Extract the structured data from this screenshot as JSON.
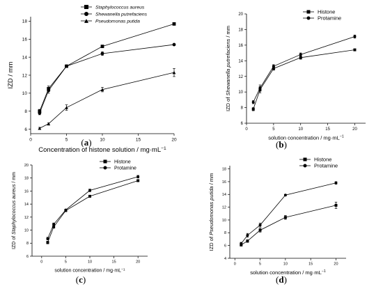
{
  "chart_data": [
    {
      "panel": "(a)",
      "type": "line",
      "xlabel": "Concentration of histone solution / mg·mL",
      "xlabel_sup": "−1",
      "ylabel": "IZD / mm",
      "xlim": [
        0,
        20
      ],
      "ylim": [
        5.5,
        18.5
      ],
      "xticks": [
        0,
        5,
        10,
        15,
        20
      ],
      "yticks": [
        6,
        8,
        10,
        12,
        14,
        16,
        18
      ],
      "x": [
        1.25,
        2.5,
        5,
        10,
        20
      ],
      "series": [
        {
          "name": "Staphylococcus aureus",
          "marker": "square",
          "values": [
            8.0,
            10.5,
            13.0,
            15.2,
            17.7
          ],
          "errors": [
            0.2,
            0.3,
            0.1,
            0.1,
            0.15
          ]
        },
        {
          "name": "Shewanella putrefaciens",
          "marker": "circle",
          "values": [
            7.8,
            10.3,
            13.0,
            14.4,
            15.4
          ],
          "errors": [
            0.2,
            0.3,
            0.1,
            0.2,
            0.1
          ]
        },
        {
          "name": "Pseudomonas putida",
          "marker": "triangle",
          "values": [
            6.1,
            6.6,
            8.4,
            10.4,
            12.3
          ],
          "errors": [
            0.1,
            0.1,
            0.3,
            0.25,
            0.45
          ]
        }
      ],
      "legend": "top-right"
    },
    {
      "panel": "(b)",
      "type": "line",
      "xlabel": "solution concentration / mg·mL",
      "xlabel_sup": "−1",
      "ylabel": "IZD of Shewanella putrefaciens / mm",
      "ylabel_plain": "IZD of ",
      "ylabel_italic": "Shewanella putrefaciens",
      "ylabel_tail": " / mm",
      "xlim": [
        0,
        22
      ],
      "ylim": [
        6,
        20
      ],
      "xticks": [
        0,
        5,
        10,
        15,
        20
      ],
      "yticks": [
        6,
        8,
        10,
        12,
        14,
        16,
        18,
        20
      ],
      "x": [
        1.25,
        2.5,
        5,
        10,
        20
      ],
      "series": [
        {
          "name": "Histone",
          "marker": "square",
          "values": [
            7.8,
            10.3,
            13.0,
            14.4,
            15.4
          ],
          "errors": [
            0.2,
            0.4,
            0.2,
            0.2,
            0.1
          ]
        },
        {
          "name": "Protamine",
          "marker": "circle",
          "values": [
            8.7,
            10.5,
            13.3,
            14.8,
            17.1
          ],
          "errors": [
            0.2,
            0.4,
            0.2,
            0.2,
            0.2
          ]
        }
      ],
      "legend": "top-right"
    },
    {
      "panel": "(c)",
      "type": "line",
      "xlabel": "solution concentration / mg·mL",
      "xlabel_sup": "−1",
      "ylabel": "IZD of Staphylococcus aureus / mm",
      "ylabel_plain": "IZD of ",
      "ylabel_italic": "Staphylococcus aureus",
      "ylabel_tail": " / mm",
      "xlim": [
        -2,
        22
      ],
      "ylim": [
        6,
        20
      ],
      "xticks": [
        0,
        5,
        10,
        15,
        20
      ],
      "yticks": [
        6,
        8,
        10,
        12,
        14,
        16,
        18,
        20
      ],
      "x": [
        1.25,
        2.5,
        5,
        10,
        20
      ],
      "series": [
        {
          "name": "Histone",
          "marker": "square",
          "values": [
            8.1,
            10.5,
            13.0,
            15.2,
            17.6
          ],
          "errors": [
            0.2,
            0.2,
            0.1,
            0.1,
            0.15
          ]
        },
        {
          "name": "Protamine",
          "marker": "circle",
          "values": [
            8.7,
            10.9,
            13.1,
            16.1,
            18.2
          ],
          "errors": [
            0.2,
            0.2,
            0.1,
            0.2,
            0.2
          ]
        }
      ],
      "legend": "top-right"
    },
    {
      "panel": "(d)",
      "type": "line",
      "xlabel": "solution concentration / mg·mL",
      "xlabel_sup": "−1",
      "ylabel": "IZD of Pseudomonas putida / mm",
      "ylabel_plain": "IZD of ",
      "ylabel_italic": "Pseudomonas putida",
      "ylabel_tail": " / mm",
      "xlim": [
        -1,
        22
      ],
      "ylim": [
        4,
        18.5
      ],
      "xticks": [
        0,
        5,
        10,
        15,
        20
      ],
      "yticks": [
        4,
        6,
        8,
        10,
        12,
        14,
        16,
        18
      ],
      "x": [
        1.25,
        2.5,
        5,
        10,
        20
      ],
      "series": [
        {
          "name": "Histone",
          "marker": "square",
          "values": [
            6.1,
            6.7,
            8.4,
            10.4,
            12.3
          ],
          "errors": [
            0.2,
            0.2,
            0.3,
            0.3,
            0.5
          ]
        },
        {
          "name": "Protamine",
          "marker": "circle",
          "values": [
            6.3,
            7.6,
            9.2,
            13.9,
            15.8
          ],
          "errors": [
            0.2,
            0.3,
            0.3,
            0.1,
            0.2
          ]
        }
      ],
      "legend": "top-right"
    }
  ]
}
